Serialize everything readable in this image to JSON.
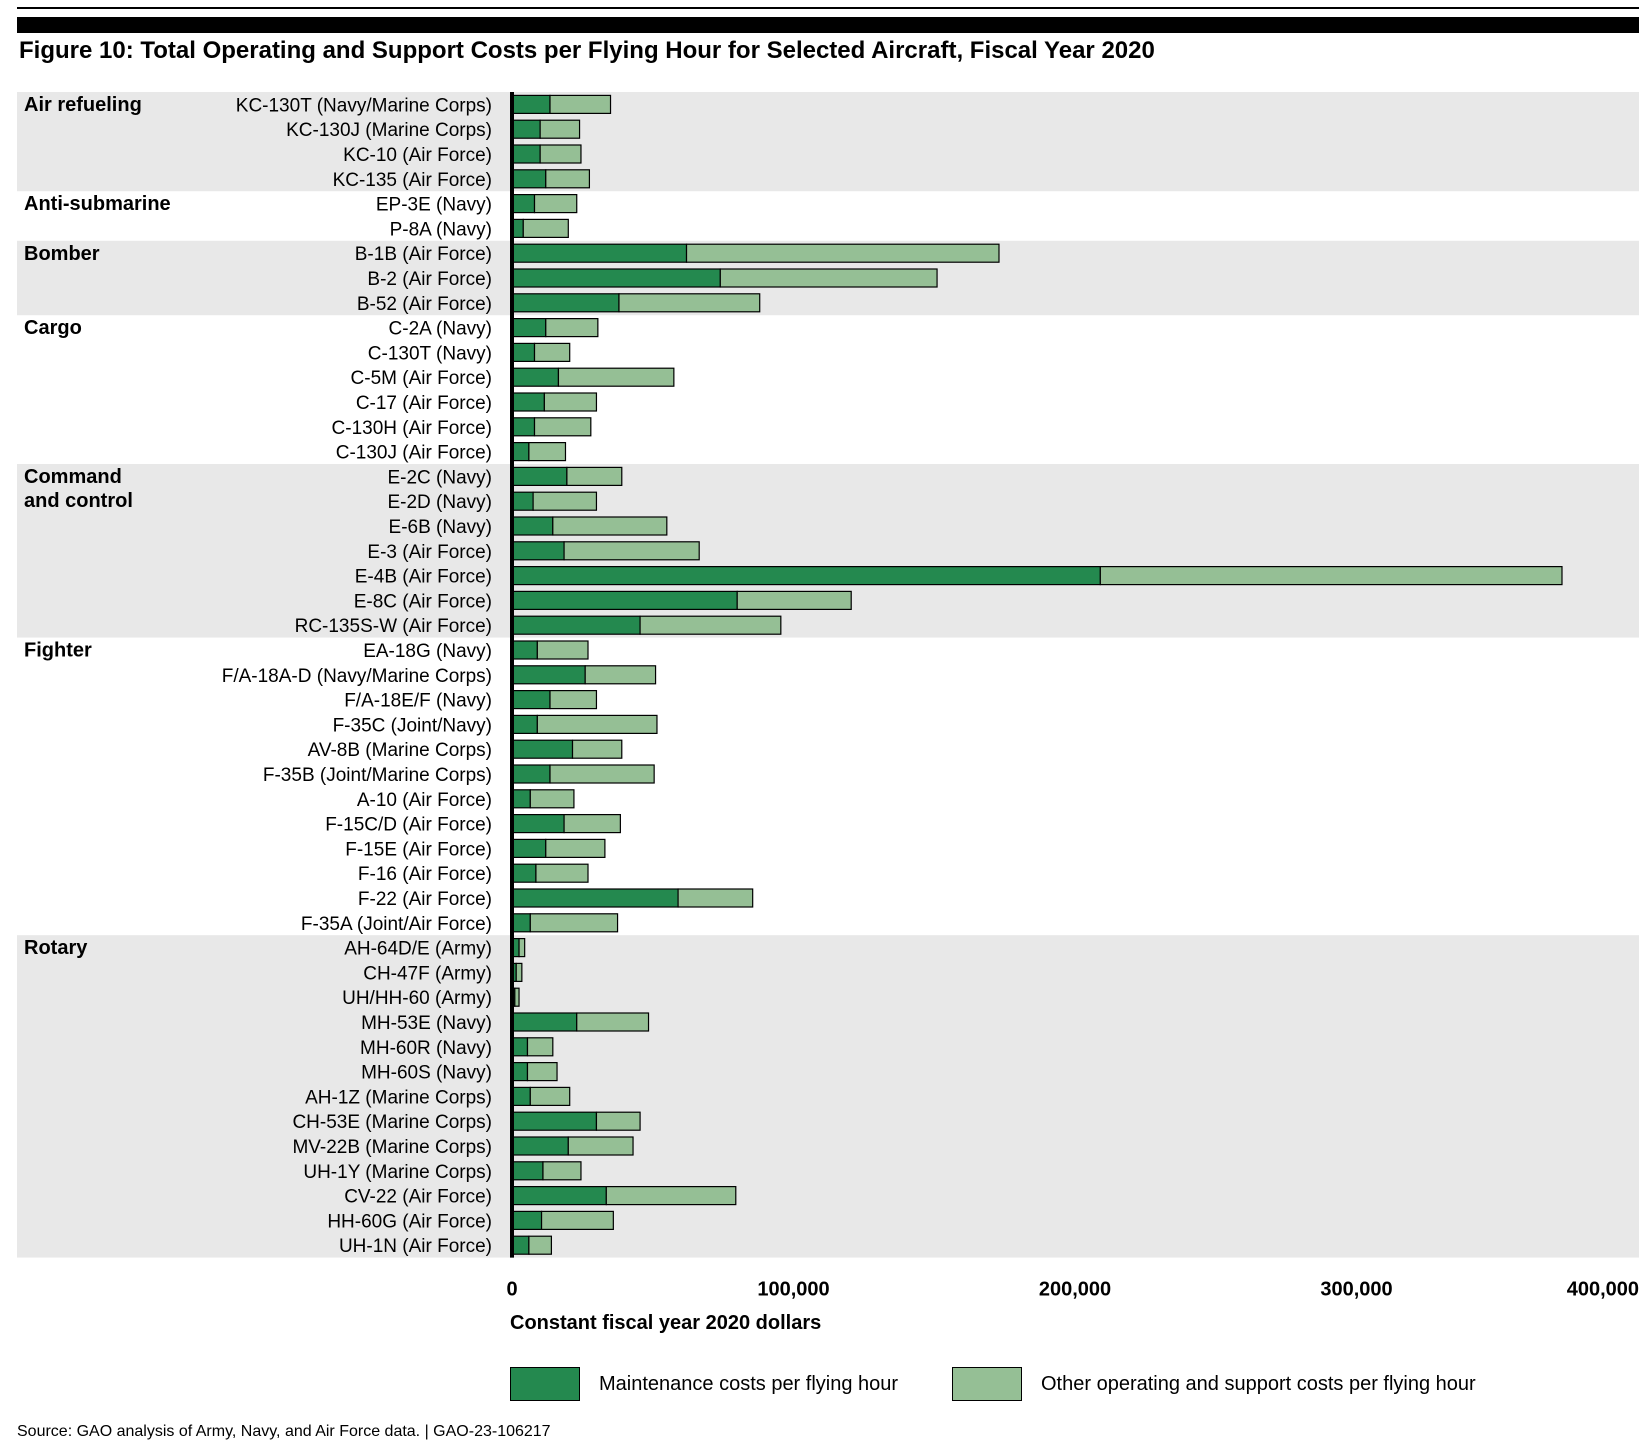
{
  "title": "Figure 10: Total Operating and Support Costs per Flying Hour for Selected Aircraft, Fiscal Year 2020",
  "source": "Source: GAO analysis of Army, Navy, and Air Force data.  |  GAO-23-106217",
  "colors": {
    "maintenance": "#24894f",
    "other": "#95bf95",
    "band": "#e8e8e8",
    "axis": "#000000"
  },
  "chart_data": {
    "type": "bar",
    "orientation": "horizontal",
    "stacked": true,
    "xlabel": "Constant fiscal year 2020 dollars",
    "xlim": [
      0,
      400000
    ],
    "xticks": [
      0,
      100000,
      200000,
      300000,
      400000
    ],
    "xtick_labels": [
      "0",
      "100,000",
      "200,000",
      "300,000",
      "400,000"
    ],
    "legend": {
      "position": "bottom",
      "entries": [
        "Maintenance costs per flying hour",
        "Other operating and support costs per flying hour"
      ]
    },
    "series": [
      {
        "name": "Maintenance costs per flying hour"
      },
      {
        "name": "Other operating and support costs per flying hour"
      }
    ],
    "groups": [
      {
        "name": "Air refueling",
        "shaded": true,
        "items": [
          {
            "label": "KC-130T (Navy/Marine Corps)",
            "maintenance": 13500,
            "other": 21500
          },
          {
            "label": "KC-130J (Marine Corps)",
            "maintenance": 10000,
            "other": 14000
          },
          {
            "label": "KC-10 (Air Force)",
            "maintenance": 10000,
            "other": 14500
          },
          {
            "label": "KC-135 (Air Force)",
            "maintenance": 12000,
            "other": 15500
          }
        ]
      },
      {
        "name": "Anti-submarine",
        "shaded": false,
        "items": [
          {
            "label": "EP-3E (Navy)",
            "maintenance": 8000,
            "other": 15000
          },
          {
            "label": "P-8A (Navy)",
            "maintenance": 4000,
            "other": 16000
          }
        ]
      },
      {
        "name": "Bomber",
        "shaded": true,
        "items": [
          {
            "label": "B-1B (Air Force)",
            "maintenance": 62000,
            "other": 111000
          },
          {
            "label": "B-2 (Air Force)",
            "maintenance": 74000,
            "other": 77000
          },
          {
            "label": "B-52 (Air Force)",
            "maintenance": 38000,
            "other": 50000
          }
        ]
      },
      {
        "name": "Cargo",
        "shaded": false,
        "items": [
          {
            "label": "C-2A (Navy)",
            "maintenance": 12000,
            "other": 18500
          },
          {
            "label": "C-130T (Navy)",
            "maintenance": 8000,
            "other": 12500
          },
          {
            "label": "C-5M (Air Force)",
            "maintenance": 16500,
            "other": 41000
          },
          {
            "label": "C-17 (Air Force)",
            "maintenance": 11500,
            "other": 18500
          },
          {
            "label": "C-130H (Air Force)",
            "maintenance": 8000,
            "other": 20000
          },
          {
            "label": "C-130J (Air Force)",
            "maintenance": 6000,
            "other": 13000
          }
        ]
      },
      {
        "name": "Command\nand control",
        "shaded": true,
        "items": [
          {
            "label": "E-2C (Navy)",
            "maintenance": 19500,
            "other": 19500
          },
          {
            "label": "E-2D (Navy)",
            "maintenance": 7500,
            "other": 22500
          },
          {
            "label": "E-6B (Navy)",
            "maintenance": 14500,
            "other": 40500
          },
          {
            "label": "E-3 (Air Force)",
            "maintenance": 18500,
            "other": 48000
          },
          {
            "label": "E-4B (Air Force)",
            "maintenance": 209000,
            "other": 164000
          },
          {
            "label": "E-8C (Air Force)",
            "maintenance": 80000,
            "other": 40500
          },
          {
            "label": "RC-135S-W (Air Force)",
            "maintenance": 45500,
            "other": 50000
          }
        ]
      },
      {
        "name": "Fighter",
        "shaded": false,
        "items": [
          {
            "label": "EA-18G (Navy)",
            "maintenance": 9000,
            "other": 18000
          },
          {
            "label": "F/A-18A-D (Navy/Marine Corps)",
            "maintenance": 26000,
            "other": 25000
          },
          {
            "label": "F/A-18E/F (Navy)",
            "maintenance": 13500,
            "other": 16500
          },
          {
            "label": "F-35C (Joint/Navy)",
            "maintenance": 9000,
            "other": 42500
          },
          {
            "label": "AV-8B (Marine Corps)",
            "maintenance": 21500,
            "other": 17500
          },
          {
            "label": "F-35B (Joint/Marine Corps)",
            "maintenance": 13500,
            "other": 37000
          },
          {
            "label": "A-10 (Air Force)",
            "maintenance": 6500,
            "other": 15500
          },
          {
            "label": "F-15C/D (Air Force)",
            "maintenance": 18500,
            "other": 20000
          },
          {
            "label": "F-15E (Air Force)",
            "maintenance": 12000,
            "other": 21000
          },
          {
            "label": "F-16 (Air Force)",
            "maintenance": 8500,
            "other": 18500
          },
          {
            "label": "F-22 (Air Force)",
            "maintenance": 59000,
            "other": 26500
          },
          {
            "label": "F-35A (Joint/Air Force)",
            "maintenance": 6500,
            "other": 31000
          }
        ]
      },
      {
        "name": "Rotary",
        "shaded": true,
        "items": [
          {
            "label": "AH-64D/E (Army)",
            "maintenance": 2500,
            "other": 2000
          },
          {
            "label": "CH-47F (Army)",
            "maintenance": 1500,
            "other": 2000
          },
          {
            "label": "UH/HH-60 (Army)",
            "maintenance": 1000,
            "other": 1500
          },
          {
            "label": "MH-53E (Navy)",
            "maintenance": 23000,
            "other": 25500
          },
          {
            "label": "MH-60R (Navy)",
            "maintenance": 5500,
            "other": 9000
          },
          {
            "label": "MH-60S (Navy)",
            "maintenance": 5500,
            "other": 10500
          },
          {
            "label": "AH-1Z (Marine Corps)",
            "maintenance": 6500,
            "other": 14000
          },
          {
            "label": "CH-53E (Marine Corps)",
            "maintenance": 30000,
            "other": 15500
          },
          {
            "label": "MV-22B (Marine Corps)",
            "maintenance": 20000,
            "other": 23000
          },
          {
            "label": "UH-1Y (Marine Corps)",
            "maintenance": 11000,
            "other": 13500
          },
          {
            "label": "CV-22 (Air Force)",
            "maintenance": 33500,
            "other": 46000
          },
          {
            "label": "HH-60G (Air Force)",
            "maintenance": 10500,
            "other": 25500
          },
          {
            "label": "UH-1N (Air Force)",
            "maintenance": 6000,
            "other": 8000
          }
        ]
      }
    ]
  }
}
